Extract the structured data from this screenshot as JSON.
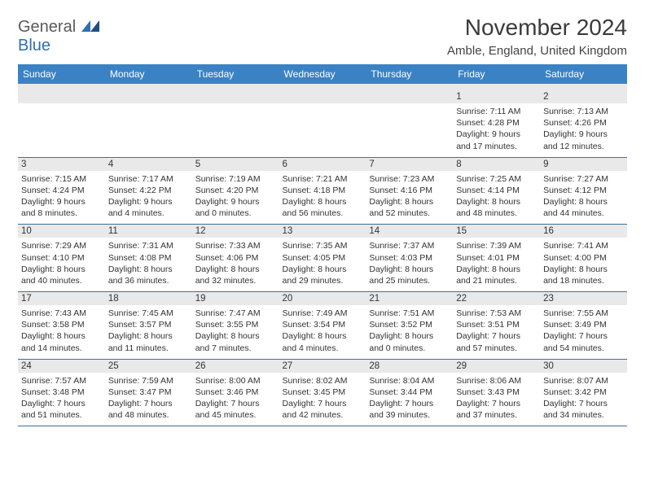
{
  "logo": {
    "part1": "General",
    "part2": "Blue"
  },
  "title": "November 2024",
  "location": "Amble, England, United Kingdom",
  "colors": {
    "header_bg": "#3b82c4",
    "header_text": "#ffffff",
    "daynum_bg": "#e9e9e9",
    "sep_line": "#3b6fa0",
    "logo_gray": "#5a5a5a",
    "logo_blue": "#2f6fb3",
    "text": "#333333",
    "page_bg": "#ffffff"
  },
  "fonts": {
    "title_size": 28,
    "location_size": 15,
    "dayhead_size": 12,
    "daynum_size": 11.5,
    "cell_size": 10.5
  },
  "day_headers": [
    "Sunday",
    "Monday",
    "Tuesday",
    "Wednesday",
    "Thursday",
    "Friday",
    "Saturday"
  ],
  "weeks": [
    [
      null,
      null,
      null,
      null,
      null,
      {
        "n": "1",
        "sr": "Sunrise: 7:11 AM",
        "ss": "Sunset: 4:28 PM",
        "d1": "Daylight: 9 hours",
        "d2": "and 17 minutes."
      },
      {
        "n": "2",
        "sr": "Sunrise: 7:13 AM",
        "ss": "Sunset: 4:26 PM",
        "d1": "Daylight: 9 hours",
        "d2": "and 12 minutes."
      }
    ],
    [
      {
        "n": "3",
        "sr": "Sunrise: 7:15 AM",
        "ss": "Sunset: 4:24 PM",
        "d1": "Daylight: 9 hours",
        "d2": "and 8 minutes."
      },
      {
        "n": "4",
        "sr": "Sunrise: 7:17 AM",
        "ss": "Sunset: 4:22 PM",
        "d1": "Daylight: 9 hours",
        "d2": "and 4 minutes."
      },
      {
        "n": "5",
        "sr": "Sunrise: 7:19 AM",
        "ss": "Sunset: 4:20 PM",
        "d1": "Daylight: 9 hours",
        "d2": "and 0 minutes."
      },
      {
        "n": "6",
        "sr": "Sunrise: 7:21 AM",
        "ss": "Sunset: 4:18 PM",
        "d1": "Daylight: 8 hours",
        "d2": "and 56 minutes."
      },
      {
        "n": "7",
        "sr": "Sunrise: 7:23 AM",
        "ss": "Sunset: 4:16 PM",
        "d1": "Daylight: 8 hours",
        "d2": "and 52 minutes."
      },
      {
        "n": "8",
        "sr": "Sunrise: 7:25 AM",
        "ss": "Sunset: 4:14 PM",
        "d1": "Daylight: 8 hours",
        "d2": "and 48 minutes."
      },
      {
        "n": "9",
        "sr": "Sunrise: 7:27 AM",
        "ss": "Sunset: 4:12 PM",
        "d1": "Daylight: 8 hours",
        "d2": "and 44 minutes."
      }
    ],
    [
      {
        "n": "10",
        "sr": "Sunrise: 7:29 AM",
        "ss": "Sunset: 4:10 PM",
        "d1": "Daylight: 8 hours",
        "d2": "and 40 minutes."
      },
      {
        "n": "11",
        "sr": "Sunrise: 7:31 AM",
        "ss": "Sunset: 4:08 PM",
        "d1": "Daylight: 8 hours",
        "d2": "and 36 minutes."
      },
      {
        "n": "12",
        "sr": "Sunrise: 7:33 AM",
        "ss": "Sunset: 4:06 PM",
        "d1": "Daylight: 8 hours",
        "d2": "and 32 minutes."
      },
      {
        "n": "13",
        "sr": "Sunrise: 7:35 AM",
        "ss": "Sunset: 4:05 PM",
        "d1": "Daylight: 8 hours",
        "d2": "and 29 minutes."
      },
      {
        "n": "14",
        "sr": "Sunrise: 7:37 AM",
        "ss": "Sunset: 4:03 PM",
        "d1": "Daylight: 8 hours",
        "d2": "and 25 minutes."
      },
      {
        "n": "15",
        "sr": "Sunrise: 7:39 AM",
        "ss": "Sunset: 4:01 PM",
        "d1": "Daylight: 8 hours",
        "d2": "and 21 minutes."
      },
      {
        "n": "16",
        "sr": "Sunrise: 7:41 AM",
        "ss": "Sunset: 4:00 PM",
        "d1": "Daylight: 8 hours",
        "d2": "and 18 minutes."
      }
    ],
    [
      {
        "n": "17",
        "sr": "Sunrise: 7:43 AM",
        "ss": "Sunset: 3:58 PM",
        "d1": "Daylight: 8 hours",
        "d2": "and 14 minutes."
      },
      {
        "n": "18",
        "sr": "Sunrise: 7:45 AM",
        "ss": "Sunset: 3:57 PM",
        "d1": "Daylight: 8 hours",
        "d2": "and 11 minutes."
      },
      {
        "n": "19",
        "sr": "Sunrise: 7:47 AM",
        "ss": "Sunset: 3:55 PM",
        "d1": "Daylight: 8 hours",
        "d2": "and 7 minutes."
      },
      {
        "n": "20",
        "sr": "Sunrise: 7:49 AM",
        "ss": "Sunset: 3:54 PM",
        "d1": "Daylight: 8 hours",
        "d2": "and 4 minutes."
      },
      {
        "n": "21",
        "sr": "Sunrise: 7:51 AM",
        "ss": "Sunset: 3:52 PM",
        "d1": "Daylight: 8 hours",
        "d2": "and 0 minutes."
      },
      {
        "n": "22",
        "sr": "Sunrise: 7:53 AM",
        "ss": "Sunset: 3:51 PM",
        "d1": "Daylight: 7 hours",
        "d2": "and 57 minutes."
      },
      {
        "n": "23",
        "sr": "Sunrise: 7:55 AM",
        "ss": "Sunset: 3:49 PM",
        "d1": "Daylight: 7 hours",
        "d2": "and 54 minutes."
      }
    ],
    [
      {
        "n": "24",
        "sr": "Sunrise: 7:57 AM",
        "ss": "Sunset: 3:48 PM",
        "d1": "Daylight: 7 hours",
        "d2": "and 51 minutes."
      },
      {
        "n": "25",
        "sr": "Sunrise: 7:59 AM",
        "ss": "Sunset: 3:47 PM",
        "d1": "Daylight: 7 hours",
        "d2": "and 48 minutes."
      },
      {
        "n": "26",
        "sr": "Sunrise: 8:00 AM",
        "ss": "Sunset: 3:46 PM",
        "d1": "Daylight: 7 hours",
        "d2": "and 45 minutes."
      },
      {
        "n": "27",
        "sr": "Sunrise: 8:02 AM",
        "ss": "Sunset: 3:45 PM",
        "d1": "Daylight: 7 hours",
        "d2": "and 42 minutes."
      },
      {
        "n": "28",
        "sr": "Sunrise: 8:04 AM",
        "ss": "Sunset: 3:44 PM",
        "d1": "Daylight: 7 hours",
        "d2": "and 39 minutes."
      },
      {
        "n": "29",
        "sr": "Sunrise: 8:06 AM",
        "ss": "Sunset: 3:43 PM",
        "d1": "Daylight: 7 hours",
        "d2": "and 37 minutes."
      },
      {
        "n": "30",
        "sr": "Sunrise: 8:07 AM",
        "ss": "Sunset: 3:42 PM",
        "d1": "Daylight: 7 hours",
        "d2": "and 34 minutes."
      }
    ]
  ]
}
